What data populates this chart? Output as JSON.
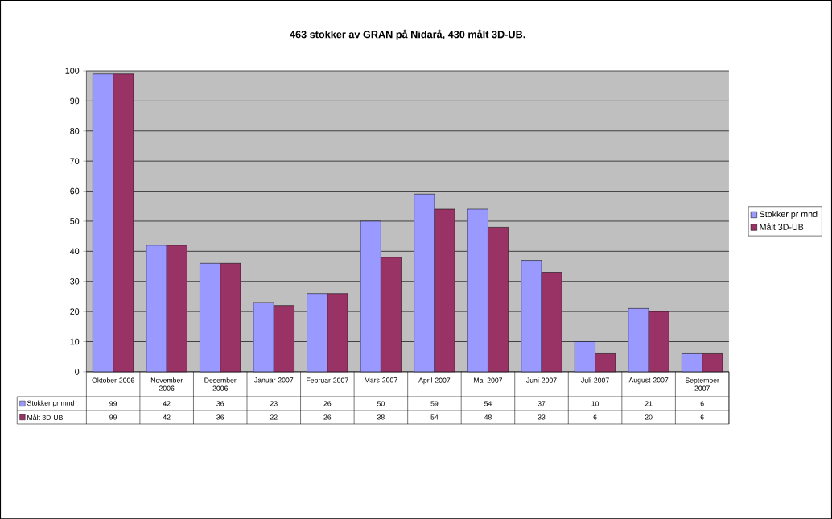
{
  "chart_data": {
    "type": "bar",
    "title": "463 stokker av GRAN på Nidarå, 430 målt 3D-UB.",
    "categories": [
      "Oktober 2006",
      "November 2006",
      "Desember 2006",
      "Januar 2007",
      "Februar 2007",
      "Mars 2007",
      "April 2007",
      "Mai 2007",
      "Juni 2007",
      "Juli 2007",
      "August 2007",
      "September 2007"
    ],
    "series": [
      {
        "name": "Stokker pr mnd",
        "color": "#9999ff",
        "values": [
          99,
          42,
          36,
          23,
          26,
          50,
          59,
          54,
          37,
          10,
          21,
          6
        ]
      },
      {
        "name": "Målt 3D-UB",
        "color": "#993366",
        "values": [
          99,
          42,
          36,
          22,
          26,
          38,
          54,
          48,
          33,
          6,
          20,
          6
        ]
      }
    ],
    "ylim": [
      0,
      100
    ],
    "yticks": [
      0,
      10,
      20,
      30,
      40,
      50,
      60,
      70,
      80,
      90,
      100
    ],
    "grid": "y",
    "legend": "right",
    "data_labels": true
  }
}
